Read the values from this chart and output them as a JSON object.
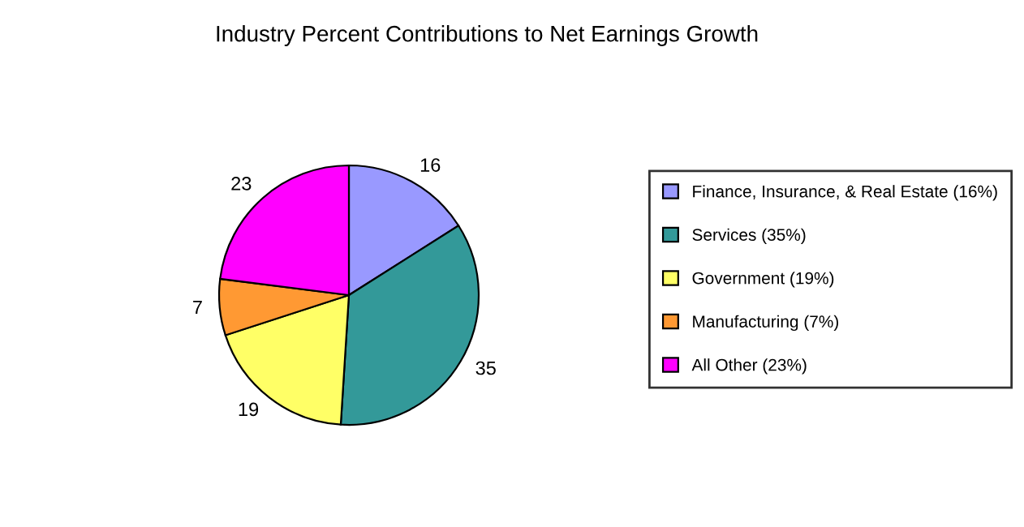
{
  "chart_data": {
    "type": "pie",
    "title": "Industry Percent Contributions to Net Earnings Growth",
    "categories": [
      "Finance, Insurance, & Real Estate (16%)",
      "Services (35%)",
      "Government (19%)",
      "Manufacturing (7%)",
      "All Other (23%)"
    ],
    "values": [
      16,
      35,
      19,
      7,
      23
    ],
    "colors": [
      "#9999ff",
      "#339999",
      "#ffff66",
      "#ff9933",
      "#ff00ff"
    ],
    "data_labels": true,
    "legend": "right"
  }
}
